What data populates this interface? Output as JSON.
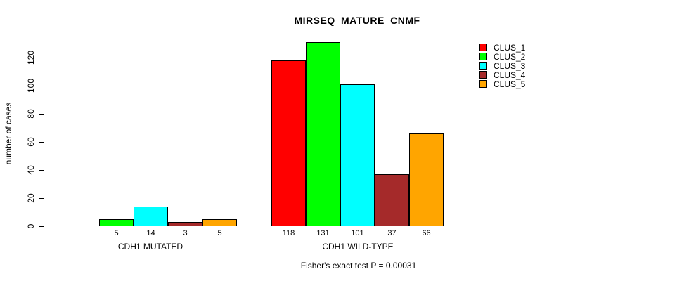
{
  "title": "MIRSEQ_MATURE_CNMF",
  "footer": "Fisher's exact test P = 0.00031",
  "chart_data": {
    "type": "bar",
    "title": "MIRSEQ_MATURE_CNMF",
    "xlabel": "",
    "ylabel": "number of cases",
    "categories": [
      "CDH1 MUTATED",
      "CDH1 WILD-TYPE"
    ],
    "series": [
      {
        "name": "CLUS_1",
        "color": "#FF0000",
        "values": [
          0,
          118
        ]
      },
      {
        "name": "CLUS_2",
        "color": "#00FF00",
        "values": [
          5,
          131
        ]
      },
      {
        "name": "CLUS_3",
        "color": "#00FFFF",
        "values": [
          14,
          101
        ]
      },
      {
        "name": "CLUS_4",
        "color": "#A52A2A",
        "values": [
          3,
          37
        ]
      },
      {
        "name": "CLUS_5",
        "color": "#FFA500",
        "values": [
          5,
          66
        ]
      }
    ],
    "bar_value_labels": {
      "CDH1 MUTATED": [
        "",
        "5",
        "14",
        "3",
        "5"
      ],
      "CDH1 WILD-TYPE": [
        "118",
        "131",
        "101",
        "37",
        "66"
      ]
    },
    "yticks": [
      0,
      20,
      40,
      60,
      80,
      100,
      120
    ],
    "ylim": [
      0,
      131
    ],
    "grid": false,
    "legend_position": "top-right",
    "annotation": "Fisher's exact test P = 0.00031"
  }
}
